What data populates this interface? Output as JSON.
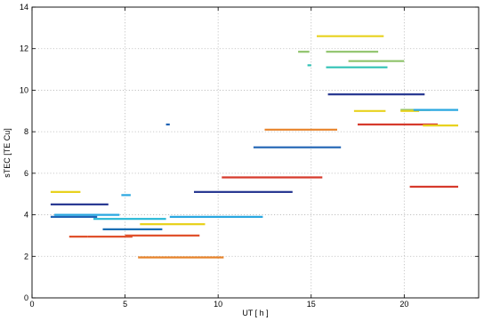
{
  "chart_data": {
    "type": "scatter",
    "title": "",
    "xlabel": "UT [ h ]",
    "ylabel": "sTEC [TE Cu]",
    "xlim": [
      0,
      24
    ],
    "ylim": [
      0,
      14
    ],
    "grid": true,
    "x_ticks": [
      0,
      5,
      10,
      15,
      20
    ],
    "y_ticks": [
      0,
      2,
      4,
      6,
      8,
      10,
      12,
      14
    ],
    "x_tick_labels": [
      "0",
      "5",
      "10",
      "15",
      "20"
    ],
    "y_tick_labels": [
      "0",
      "2",
      "4",
      "6",
      "8",
      "10",
      "12",
      "14"
    ],
    "series": [
      {
        "color": "#e8d21e",
        "x": [
          1.0,
          2.6
        ],
        "y": [
          5.1,
          5.1
        ]
      },
      {
        "color": "#2a3a93",
        "x": [
          1.0,
          4.1
        ],
        "y": [
          4.5,
          4.5
        ]
      },
      {
        "color": "#1f63b4",
        "x": [
          1.0,
          3.5
        ],
        "y": [
          3.9,
          3.9
        ]
      },
      {
        "color": "#2aa7e0",
        "x": [
          1.2,
          4.7
        ],
        "y": [
          4.0,
          4.0
        ]
      },
      {
        "color": "#25b7d6",
        "x": [
          3.3,
          7.2
        ],
        "y": [
          3.8,
          3.8
        ]
      },
      {
        "color": "#2aa7e0",
        "x": [
          4.8,
          5.3
        ],
        "y": [
          4.95,
          4.95
        ]
      },
      {
        "color": "#e0512c",
        "x": [
          2.0,
          3.0
        ],
        "y": [
          2.95,
          2.95
        ]
      },
      {
        "color": "#e0512c",
        "x": [
          3.0,
          5.4
        ],
        "y": [
          2.95,
          2.95
        ]
      },
      {
        "color": "#1a6fb5",
        "x": [
          3.8,
          7.0
        ],
        "y": [
          3.3,
          3.3
        ]
      },
      {
        "color": "#e0512c",
        "x": [
          5.0,
          9.0
        ],
        "y": [
          3.0,
          3.0
        ]
      },
      {
        "color": "#e8d21e",
        "x": [
          5.8,
          9.3
        ],
        "y": [
          3.55,
          3.55
        ]
      },
      {
        "color": "#e8832a",
        "x": [
          5.7,
          10.3
        ],
        "y": [
          1.95,
          1.95
        ]
      },
      {
        "color": "#1f63b4",
        "x": [
          7.2,
          7.4
        ],
        "y": [
          8.35,
          8.35
        ]
      },
      {
        "color": "#2aa7e0",
        "x": [
          7.4,
          12.4
        ],
        "y": [
          3.9,
          3.9
        ]
      },
      {
        "color": "#2a3a93",
        "x": [
          8.7,
          14.0
        ],
        "y": [
          5.1,
          5.1
        ]
      },
      {
        "color": "#d63a2c",
        "x": [
          10.2,
          15.6
        ],
        "y": [
          5.8,
          5.8
        ]
      },
      {
        "color": "#1f63b4",
        "x": [
          11.9,
          16.6
        ],
        "y": [
          7.25,
          7.25
        ]
      },
      {
        "color": "#e8832a",
        "x": [
          12.5,
          16.4
        ],
        "y": [
          8.1,
          8.1
        ]
      },
      {
        "color": "#8ec36a",
        "x": [
          14.3,
          14.9
        ],
        "y": [
          11.85,
          11.85
        ]
      },
      {
        "color": "#30c2b5",
        "x": [
          14.8,
          15.0
        ],
        "y": [
          11.2,
          11.2
        ]
      },
      {
        "color": "#e8d21e",
        "x": [
          15.3,
          18.9
        ],
        "y": [
          12.6,
          12.6
        ]
      },
      {
        "color": "#8ec36a",
        "x": [
          15.8,
          18.6
        ],
        "y": [
          11.85,
          11.85
        ]
      },
      {
        "color": "#8ec36a",
        "x": [
          17.0,
          20.0
        ],
        "y": [
          11.4,
          11.4
        ]
      },
      {
        "color": "#30c2b5",
        "x": [
          15.8,
          19.1
        ],
        "y": [
          11.1,
          11.1
        ]
      },
      {
        "color": "#2a3a93",
        "x": [
          15.9,
          21.1
        ],
        "y": [
          9.8,
          9.8
        ]
      },
      {
        "color": "#e8d21e",
        "x": [
          17.3,
          19.0
        ],
        "y": [
          9.0,
          9.0
        ]
      },
      {
        "color": "#8ec36a",
        "x": [
          19.8,
          21.4
        ],
        "y": [
          9.05,
          9.05
        ]
      },
      {
        "color": "#e8d21e",
        "x": [
          19.8,
          20.8
        ],
        "y": [
          9.0,
          9.0
        ]
      },
      {
        "color": "#2aa7e0",
        "x": [
          20.5,
          22.9
        ],
        "y": [
          9.05,
          9.05
        ]
      },
      {
        "color": "#d63a2c",
        "x": [
          17.5,
          21.8
        ],
        "y": [
          8.35,
          8.35
        ]
      },
      {
        "color": "#e8d21e",
        "x": [
          21.0,
          22.9
        ],
        "y": [
          8.3,
          8.3
        ]
      },
      {
        "color": "#d63a2c",
        "x": [
          20.3,
          22.9
        ],
        "y": [
          5.35,
          5.35
        ]
      }
    ]
  }
}
